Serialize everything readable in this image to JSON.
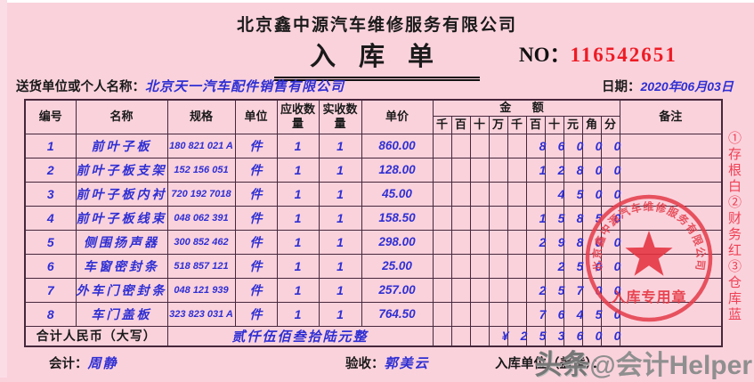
{
  "header": {
    "company": "北京鑫中源汽车维修服务有限公司",
    "doc_title": "入库单",
    "no_label": "NO：",
    "no_value": "116542651",
    "supplier_label": "送货单位或个人名称：",
    "supplier_value": "北京天一汽车配件销售有限公司",
    "date_label": "日期：",
    "date_value": "2020年06月03日"
  },
  "table": {
    "headers": {
      "no": "编号",
      "name": "名称",
      "spec": "规格",
      "unit": "单位",
      "qty_due": "应收数量",
      "qty_recv": "实收数量",
      "price": "单价",
      "amount": "金 额",
      "remark": "备注"
    },
    "amount_cols": [
      "千",
      "百",
      "十",
      "万",
      "千",
      "百",
      "十",
      "元",
      "角",
      "分"
    ],
    "rows": [
      {
        "no": "1",
        "name": "前叶子板",
        "spec": "180 821 021 A",
        "unit": "件",
        "qty_due": "1",
        "qty_recv": "1",
        "price": "860.00",
        "digits": [
          "",
          "",
          "",
          "",
          "",
          "8",
          "6",
          "0",
          "0",
          "0"
        ],
        "remark": ""
      },
      {
        "no": "2",
        "name": "前叶子板支架",
        "spec": "152 156 051",
        "unit": "件",
        "qty_due": "1",
        "qty_recv": "1",
        "price": "128.00",
        "digits": [
          "",
          "",
          "",
          "",
          "",
          "1",
          "2",
          "8",
          "0",
          "0"
        ],
        "remark": ""
      },
      {
        "no": "3",
        "name": "前叶子板内衬",
        "spec": "720 192 7018",
        "unit": "件",
        "qty_due": "1",
        "qty_recv": "1",
        "price": "45.00",
        "digits": [
          "",
          "",
          "",
          "",
          "",
          "",
          "4",
          "5",
          "0",
          "0"
        ],
        "remark": ""
      },
      {
        "no": "4",
        "name": "前叶子板线束",
        "spec": "048 062 391",
        "unit": "件",
        "qty_due": "1",
        "qty_recv": "1",
        "price": "158.50",
        "digits": [
          "",
          "",
          "",
          "",
          "",
          "1",
          "5",
          "8",
          "5",
          "0"
        ],
        "remark": ""
      },
      {
        "no": "5",
        "name": "侧围扬声器",
        "spec": "300 852 462",
        "unit": "件",
        "qty_due": "1",
        "qty_recv": "1",
        "price": "298.00",
        "digits": [
          "",
          "",
          "",
          "",
          "",
          "2",
          "9",
          "8",
          "0",
          "0"
        ],
        "remark": ""
      },
      {
        "no": "6",
        "name": "车窗密封条",
        "spec": "518 857 121",
        "unit": "件",
        "qty_due": "1",
        "qty_recv": "1",
        "price": "25.00",
        "digits": [
          "",
          "",
          "",
          "",
          "",
          "",
          "2",
          "5",
          "0",
          "0"
        ],
        "remark": ""
      },
      {
        "no": "7",
        "name": "外车门密封条",
        "spec": "048 121 939",
        "unit": "件",
        "qty_due": "1",
        "qty_recv": "1",
        "price": "257.00",
        "digits": [
          "",
          "",
          "",
          "",
          "",
          "2",
          "5",
          "7",
          "0",
          "0"
        ],
        "remark": ""
      },
      {
        "no": "8",
        "name": "车门盖板",
        "spec": "323 823 031 A",
        "unit": "件",
        "qty_due": "1",
        "qty_recv": "1",
        "price": "764.50",
        "digits": [
          "",
          "",
          "",
          "",
          "",
          "7",
          "6",
          "4",
          "5",
          "0"
        ],
        "remark": ""
      }
    ],
    "total": {
      "label": "合计人民币（大写）",
      "words": "贰仟伍佰叁拾陆元整",
      "digits": [
        "",
        "",
        "",
        "¥",
        "2",
        "5",
        "3",
        "6",
        "0",
        "0"
      ],
      "remark": ""
    }
  },
  "footer": {
    "accountant_label": "会计：",
    "accountant_value": "周静",
    "inspector_label": "验收：",
    "inspector_value": "郭美云",
    "unit_label": "入库单位（盖章）：",
    "watermark_logo": "头条",
    "watermark_handle": "@会计Helper"
  },
  "side_note": "①存根白②财务红③仓库蓝",
  "stamp": {
    "company": "北京鑫中源汽车维修服务有限公司",
    "label": "入库专用章"
  },
  "colors": {
    "background": "#fad2dc",
    "table_line": "#46273b",
    "handwriting_blue": "#2f2fd3",
    "no_red": "#ee1b24",
    "stamp_red": "#e5404d",
    "side_text_red": "#ef4054",
    "watermark_gray": "#8f8f8f"
  }
}
